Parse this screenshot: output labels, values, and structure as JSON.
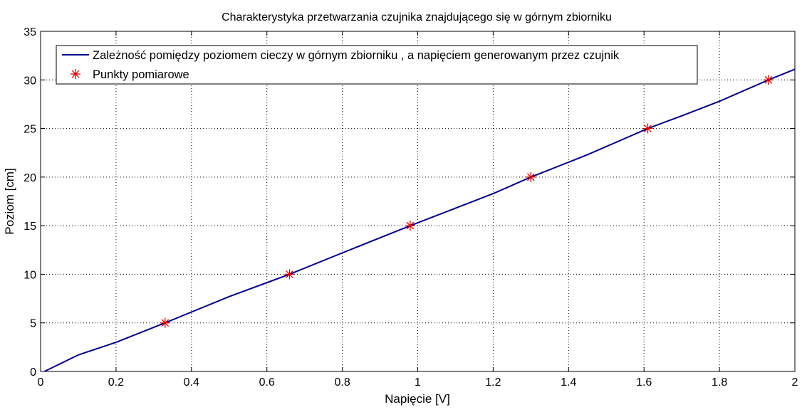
{
  "chart_data": {
    "type": "line",
    "title": "Charakterystyka przetwarzania czujnika znajdującego się w górnym zbiorniku",
    "xlabel": "Napięcie [V]",
    "ylabel": "Poziom [cm]",
    "xlim": [
      0,
      2
    ],
    "ylim": [
      0,
      35
    ],
    "xticks": [
      0,
      0.2,
      0.4,
      0.6,
      0.8,
      1,
      1.2,
      1.4,
      1.6,
      1.8,
      2
    ],
    "xtick_labels": [
      "0",
      "0.2",
      "0.4",
      "0.6",
      "0.8",
      "1",
      "1.2",
      "1.4",
      "1.6",
      "1.8",
      "2"
    ],
    "yticks": [
      0,
      5,
      10,
      15,
      20,
      25,
      30,
      35
    ],
    "ytick_labels": [
      "0",
      "5",
      "10",
      "15",
      "20",
      "25",
      "30",
      "35"
    ],
    "grid": true,
    "legend_position": "top-left",
    "series": [
      {
        "name": "Zależność pomiędzy poziomem cieczy w górnym zbiorniku , a napięciem generowanym przez czujnik",
        "style": "line",
        "color": "#00008b",
        "x": [
          0.01,
          0.1,
          0.2,
          0.33,
          0.5,
          0.66,
          0.8,
          0.98,
          1.1,
          1.2,
          1.3,
          1.45,
          1.61,
          1.7,
          1.8,
          1.93,
          2.0
        ],
        "y": [
          0,
          1.7,
          3.0,
          5.0,
          7.7,
          10.0,
          12.2,
          15.0,
          16.8,
          18.3,
          20.0,
          22.3,
          25.0,
          26.3,
          27.8,
          30.0,
          31.1
        ]
      },
      {
        "name": "Punkty pomiarowe",
        "style": "marker",
        "color": "#e00000",
        "x": [
          0.33,
          0.66,
          0.98,
          1.3,
          1.61,
          1.93
        ],
        "y": [
          5,
          10,
          15,
          20,
          25,
          30
        ]
      }
    ]
  }
}
